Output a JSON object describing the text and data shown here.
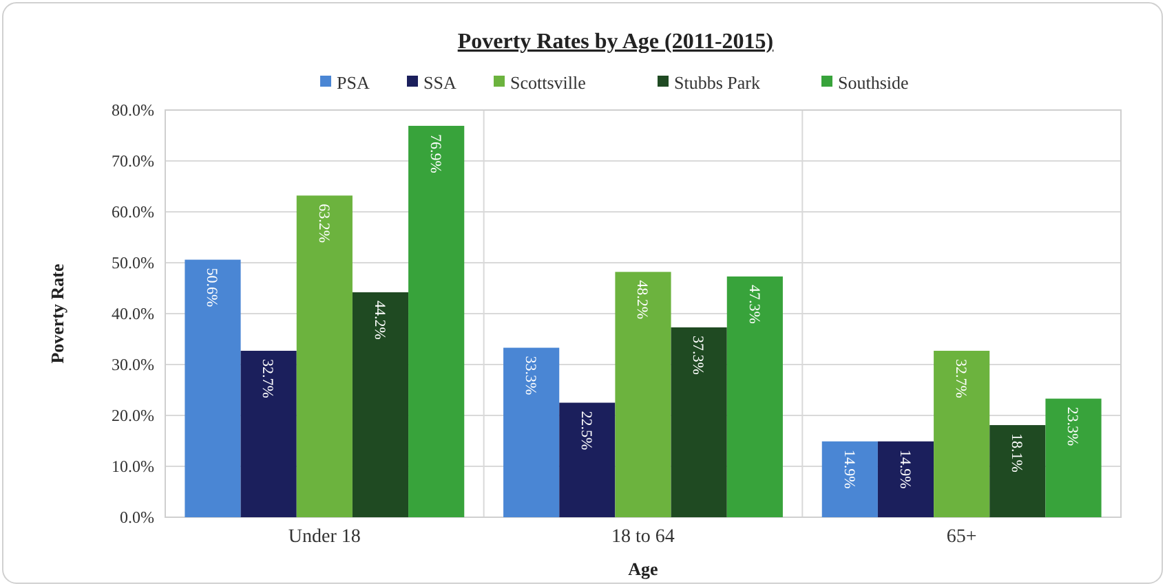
{
  "chart_data": {
    "type": "bar",
    "title": "Poverty Rates by Age (2011-2015)",
    "xlabel": "Age",
    "ylabel": "Poverty Rate",
    "categories": [
      "Under 18",
      "18 to 64",
      "65+"
    ],
    "series": [
      {
        "name": "PSA",
        "color": "#4a86d4",
        "values": [
          50.6,
          33.3,
          14.9
        ],
        "value_labels": [
          "50.6%",
          "33.3%",
          "14.9%"
        ]
      },
      {
        "name": "SSA",
        "color": "#1b1f5c",
        "values": [
          32.7,
          22.5,
          14.9
        ],
        "value_labels": [
          "32.7%",
          "22.5%",
          "14.9%"
        ]
      },
      {
        "name": "Scottsville",
        "color": "#6cb33e",
        "values": [
          63.2,
          48.2,
          32.7
        ],
        "value_labels": [
          "63.2%",
          "48.2%",
          "32.7%"
        ]
      },
      {
        "name": "Stubbs Park",
        "color": "#1f4a22",
        "values": [
          44.2,
          37.3,
          18.1
        ],
        "value_labels": [
          "44.2%",
          "37.3%",
          "18.1%"
        ]
      },
      {
        "name": "Southside",
        "color": "#38a33b",
        "values": [
          76.9,
          47.3,
          23.3
        ],
        "value_labels": [
          "76.9%",
          "47.3%",
          "23.3%"
        ]
      }
    ],
    "ylim": [
      0,
      80
    ],
    "yticks": [
      {
        "value": 0,
        "label": "0.0%"
      },
      {
        "value": 10,
        "label": "10.0%"
      },
      {
        "value": 20,
        "label": "20.0%"
      },
      {
        "value": 30,
        "label": "30.0%"
      },
      {
        "value": 40,
        "label": "40.0%"
      },
      {
        "value": 50,
        "label": "50.0%"
      },
      {
        "value": 60,
        "label": "60.0%"
      },
      {
        "value": 70,
        "label": "70.0%"
      },
      {
        "value": 80,
        "label": "80.0%"
      }
    ],
    "grid": "y",
    "legend": "top"
  }
}
